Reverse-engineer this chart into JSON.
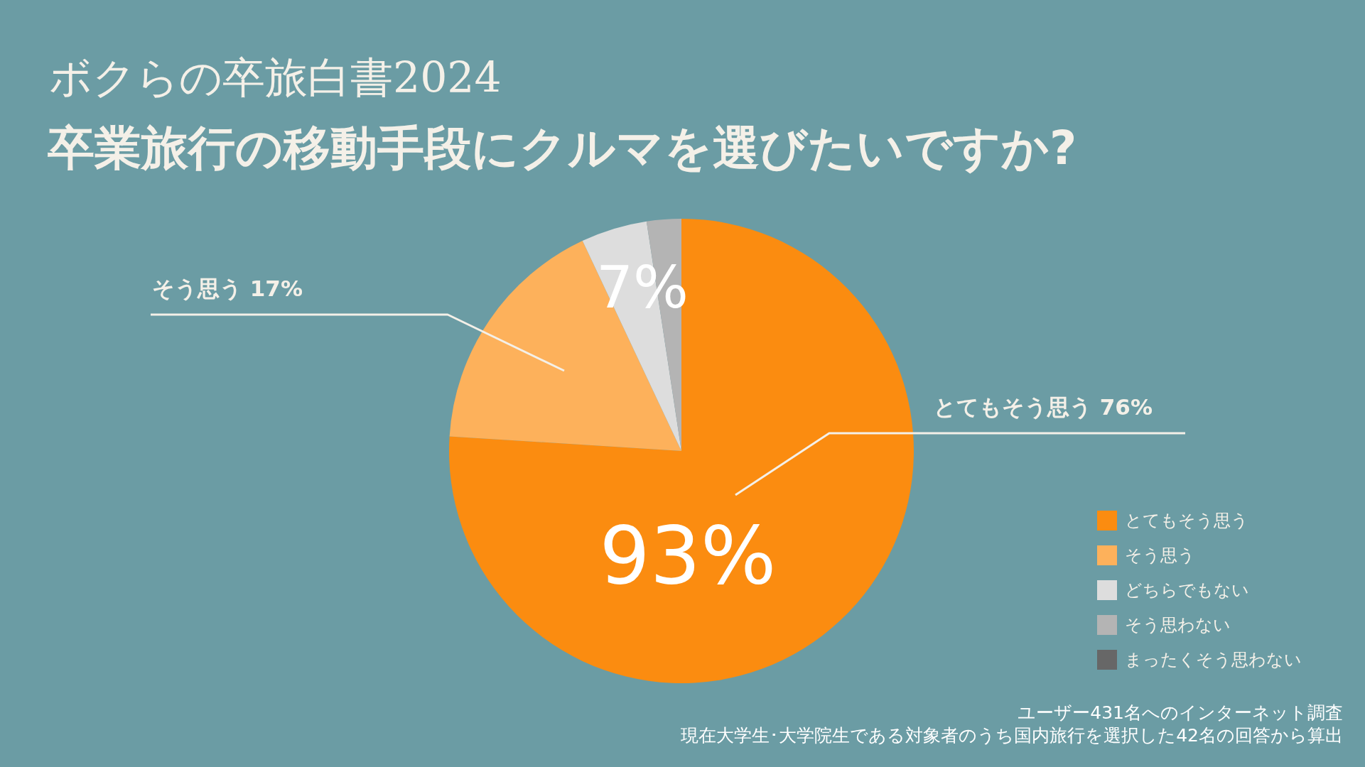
{
  "chart_data": {
    "type": "pie",
    "title": "卒業旅行の移動手段にクルマを選びたいですか?",
    "subtitle": "ボクらの卒旅白書2024",
    "categories": [
      "とてもそう思う",
      "そう思う",
      "どちらでもない",
      "そう思わない",
      "まったくそう思わない"
    ],
    "values": [
      76,
      17,
      4.6,
      2.4,
      0
    ],
    "colors": [
      "#fb8c10",
      "#fdb15b",
      "#dddddd",
      "#b4b4b4",
      "#676767"
    ],
    "value_labels": [
      "76%",
      "17%",
      null,
      null,
      null
    ],
    "annotations": [
      "93%",
      "7%",
      "ユーザー431名へのインターネット調査",
      "現在大学生･大学院生である対象者のうち国内旅行を選択した42名の回答から算出"
    ],
    "legend": "bottom right"
  }
}
